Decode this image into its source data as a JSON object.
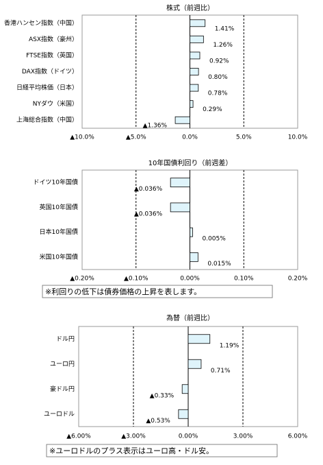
{
  "chart_data": [
    {
      "type": "bar",
      "orientation": "horizontal",
      "title": "株式（前週比）",
      "categories": [
        "香港ハンセン指数（中国）",
        "ASX指数（豪州）",
        "FTSE指数（英国）",
        "DAX指数（ドイツ）",
        "日経平均株価（日本）",
        "NYダウ（米国）",
        "上海総合指数（中国）"
      ],
      "values": [
        1.41,
        1.26,
        0.92,
        0.8,
        0.78,
        0.29,
        -1.36
      ],
      "value_labels": [
        "1.41%",
        "1.26%",
        "0.92%",
        "0.80%",
        "0.78%",
        "0.29%",
        "▲1.36%"
      ],
      "color": "#dff4fb",
      "xlim": [
        -10,
        10
      ],
      "xticks": [
        {
          "value": -10,
          "label": "▲10.0%"
        },
        {
          "value": -5,
          "label": "▲5.0%"
        },
        {
          "value": 0,
          "label": "0.0%"
        },
        {
          "value": 5,
          "label": "5.0%"
        },
        {
          "value": 10,
          "label": "10.0%"
        }
      ],
      "grid": true
    },
    {
      "type": "bar",
      "orientation": "horizontal",
      "title": "10年国債利回り（前週差）",
      "categories": [
        "ドイツ10年国債",
        "英国10年国債",
        "日本10年国債",
        "米国10年国債"
      ],
      "values": [
        -0.036,
        -0.036,
        0.005,
        0.015
      ],
      "value_labels": [
        "▲0.036%",
        "▲0.036%",
        "0.005%",
        "0.015%"
      ],
      "color": "#dff4fb",
      "xlim": [
        -0.2,
        0.2
      ],
      "xticks": [
        {
          "value": -0.2,
          "label": "▲0.20%"
        },
        {
          "value": -0.1,
          "label": "▲0.10%"
        },
        {
          "value": 0,
          "label": "0.00%"
        },
        {
          "value": 0.1,
          "label": "0.10%"
        },
        {
          "value": 0.2,
          "label": "0.20%"
        }
      ],
      "grid": true,
      "note": "※利回りの低下は債券価格の上昇を表します。"
    },
    {
      "type": "bar",
      "orientation": "horizontal",
      "title": "為替（前週比）",
      "categories": [
        "ドル円",
        "ユーロ円",
        "豪ドル円",
        "ユーロドル"
      ],
      "values": [
        1.19,
        0.71,
        -0.33,
        -0.53
      ],
      "value_labels": [
        "1.19%",
        "0.71%",
        "▲0.33%",
        "▲0.53%"
      ],
      "color": "#dff4fb",
      "xlim": [
        -6,
        6
      ],
      "xticks": [
        {
          "value": -6,
          "label": "▲6.00%"
        },
        {
          "value": -3,
          "label": "▲3.00%"
        },
        {
          "value": 0,
          "label": "0.00%"
        },
        {
          "value": 3,
          "label": "3.00%"
        },
        {
          "value": 6,
          "label": "6.00%"
        }
      ],
      "grid": true,
      "note": "※ユーロドルのプラス表示はユーロ高・ドル安。"
    }
  ]
}
